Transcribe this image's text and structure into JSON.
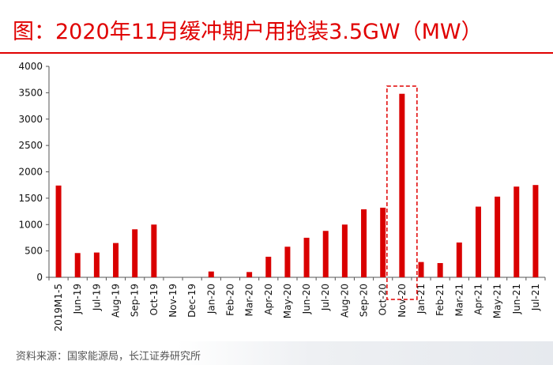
{
  "header": {
    "title": "图：2020年11月缓冲期户用抢装3.5GW（MW）"
  },
  "footer": {
    "source": "资料来源：国家能源局，长江证券研究所"
  },
  "colors": {
    "bar": "#d90000",
    "accent": "#e00000",
    "highlight_box": "#e00000"
  },
  "chart_data": {
    "type": "bar",
    "title": "图：2020年11月缓冲期户用抢装3.5GW（MW）",
    "xlabel": "",
    "ylabel": "",
    "ylim": [
      0,
      4000
    ],
    "yticks": [
      "0",
      "500",
      "1000",
      "1500",
      "2000",
      "2500",
      "3000",
      "3500",
      "4000"
    ],
    "grid": false,
    "legend": "none",
    "categories": [
      "2019M1-5",
      "Jun-19",
      "Jul-19",
      "Aug-19",
      "Sep-19",
      "Oct-19",
      "Nov-19",
      "Dec-19",
      "Jan-20",
      "Feb-20",
      "Mar-20",
      "Apr-20",
      "May-20",
      "Jun-20",
      "Jul-20",
      "Aug-20",
      "Sep-20",
      "Oct-20",
      "Nov-20",
      "Jan-21",
      "Feb-21",
      "Mar-21",
      "Apr-21",
      "May-21",
      "Jun-21",
      "Jul-21"
    ],
    "values": [
      1740,
      460,
      470,
      650,
      910,
      1000,
      0,
      0,
      110,
      0,
      100,
      390,
      580,
      750,
      880,
      1000,
      1290,
      1320,
      3480,
      290,
      270,
      660,
      1340,
      1530,
      1720,
      1750
    ],
    "highlight": {
      "category": "Nov-20",
      "style": "dashed-box"
    }
  }
}
